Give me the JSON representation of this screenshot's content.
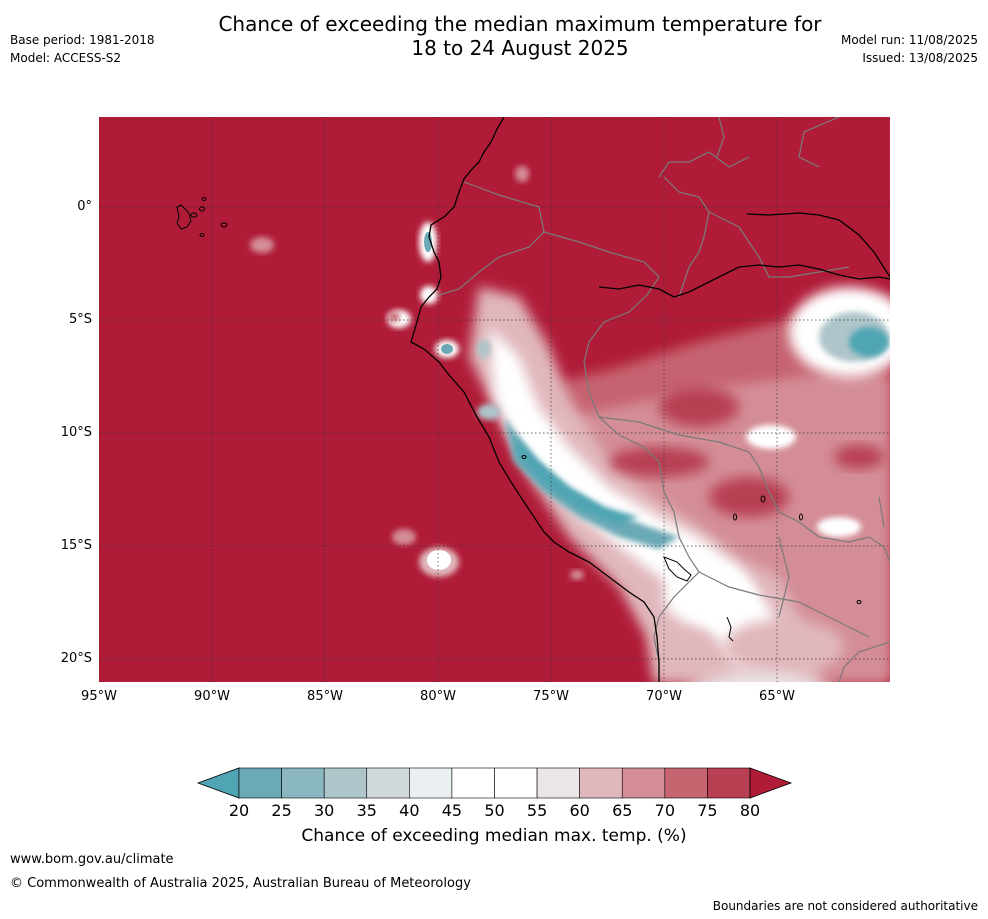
{
  "header": {
    "title_line1": "Chance of exceeding the median maximum temperature for",
    "title_line2": "18 to 24 August 2025",
    "base_period": "Base period: 1981-2018",
    "model": "Model: ACCESS-S2",
    "model_run": "Model run: 11/08/2025",
    "issued": "Issued: 13/08/2025"
  },
  "map": {
    "region": "Western South America",
    "lat_ticks": [
      "0°",
      "5°S",
      "10°S",
      "15°S",
      "20°S"
    ],
    "lon_ticks": [
      "95°W",
      "90°W",
      "85°W",
      "80°W",
      "75°W",
      "70°W",
      "65°W"
    ],
    "background_color": "#b01c38",
    "coastline_color": "#000000",
    "border_color": "#7a7a7a",
    "gridlines": true
  },
  "colorbar": {
    "ticks": [
      "20",
      "25",
      "30",
      "35",
      "40",
      "45",
      "50",
      "55",
      "60",
      "65",
      "70",
      "75",
      "80"
    ],
    "colors": [
      "#4fa5b4",
      "#6ba9b6",
      "#8bb7c1",
      "#aec5ca",
      "#cfd8db",
      "#eaeff1",
      "#ffffff",
      "#ffffff",
      "#ebe5e6",
      "#e0b7bc",
      "#d48d96",
      "#c66470",
      "#b84052",
      "#b01c38"
    ],
    "label": "Chance of exceeding median max. temp. (%)"
  },
  "footer": {
    "website": "www.bom.gov.au/climate",
    "copyright": "© Commonwealth of Australia 2025, Australian Bureau of Meteorology",
    "disclaimer": "Boundaries are not considered authoritative"
  }
}
